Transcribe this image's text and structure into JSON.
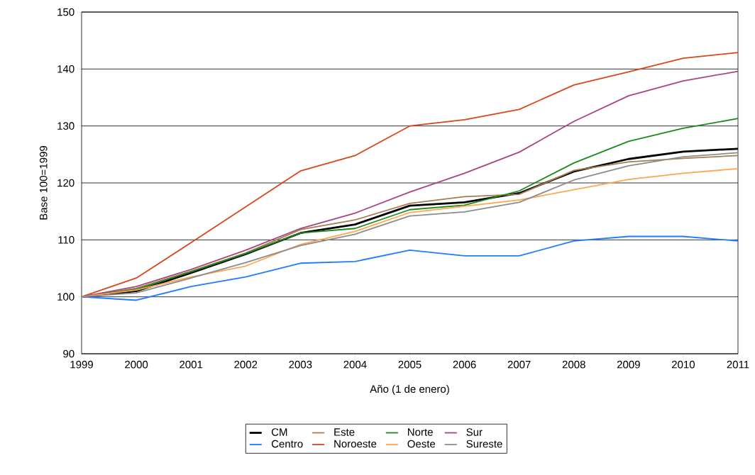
{
  "chart_data": {
    "type": "line",
    "xlabel": "Año (1 de enero)",
    "ylabel": "Base 100=1999",
    "x": [
      1999,
      2000,
      2001,
      2002,
      2003,
      2004,
      2005,
      2006,
      2007,
      2008,
      2009,
      2010,
      2011
    ],
    "xlim": [
      1999,
      2011
    ],
    "xticks": [
      1999,
      2000,
      2001,
      2002,
      2003,
      2004,
      2005,
      2006,
      2007,
      2008,
      2009,
      2010,
      2011
    ],
    "ylim": [
      90,
      150
    ],
    "yticks": [
      90,
      100,
      110,
      120,
      130,
      140,
      150
    ],
    "grid": "y",
    "legend": "bottom",
    "marker": "none",
    "line_style": "solid",
    "series": [
      {
        "name": "CM",
        "color": "#000000",
        "values": [
          100,
          101,
          104.2,
          107.5,
          111.2,
          112.7,
          116,
          116.6,
          118.2,
          122,
          124.2,
          125.5,
          126
        ]
      },
      {
        "name": "Este",
        "color": "#a67c52",
        "values": [
          100,
          101.5,
          104.5,
          107.7,
          111.8,
          113.5,
          116.4,
          117.6,
          118,
          122.2,
          123.7,
          124.3,
          124.8
        ]
      },
      {
        "name": "Norte",
        "color": "#1a8a1a",
        "values": [
          100,
          101.3,
          104.4,
          107.6,
          111.2,
          112,
          115.3,
          116.1,
          118.6,
          123.5,
          127.3,
          129.6,
          131.3
        ]
      },
      {
        "name": "Sur",
        "color": "#a8447f",
        "values": [
          100,
          101.8,
          104.8,
          108.2,
          112,
          114.7,
          118.4,
          121.7,
          125.4,
          130.8,
          135.3,
          137.9,
          139.6
        ]
      },
      {
        "name": "Centro",
        "color": "#1e7cff",
        "values": [
          100,
          99.4,
          101.8,
          103.5,
          105.9,
          106.2,
          108.2,
          107.2,
          107.2,
          109.8,
          110.6,
          110.6,
          109.8
        ]
      },
      {
        "name": "Noroeste",
        "color": "#d9461a",
        "values": [
          100,
          103.3,
          109.5,
          115.8,
          122.1,
          124.8,
          130,
          131.1,
          132.9,
          137.2,
          139.5,
          141.9,
          142.9
        ]
      },
      {
        "name": "Oeste",
        "color": "#ffa64d",
        "values": [
          100,
          101.2,
          103.5,
          105.4,
          109.2,
          111.5,
          114.8,
          115.9,
          117,
          118.8,
          120.6,
          121.7,
          122.5
        ]
      },
      {
        "name": "Sureste",
        "color": "#8c8c8c",
        "values": [
          100,
          100.7,
          103.3,
          106,
          109,
          111,
          114.2,
          114.9,
          116.6,
          120.5,
          123,
          124.6,
          125.3
        ]
      }
    ]
  }
}
